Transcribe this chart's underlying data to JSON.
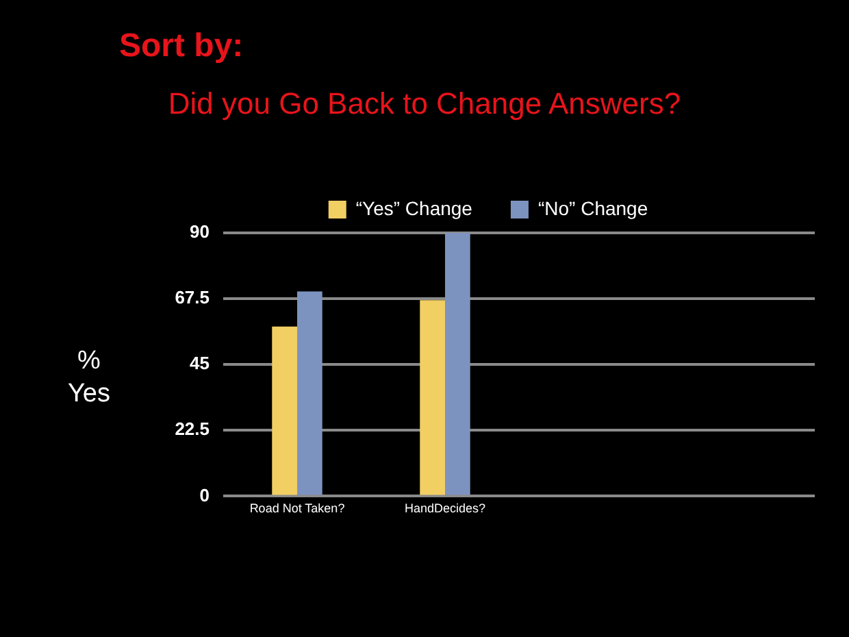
{
  "chart_data": {
    "type": "bar",
    "title": "Sort by:",
    "subtitle": "Did you Go Back to Change Answers?",
    "ylabel": "%\nYes",
    "categories": [
      "Road Not Taken?",
      "HandDecides?",
      null,
      null
    ],
    "series": [
      {
        "name": "“Yes” Change",
        "color": "#f2cf63",
        "values": [
          58,
          67,
          null,
          null
        ]
      },
      {
        "name": "“No” Change",
        "color": "#7d93bf",
        "values": [
          70,
          90,
          null,
          null
        ]
      }
    ],
    "ylim": [
      0,
      90
    ],
    "yticks": [
      0,
      22.5,
      45,
      67.5,
      90
    ],
    "grid": "y",
    "legend": "top"
  }
}
